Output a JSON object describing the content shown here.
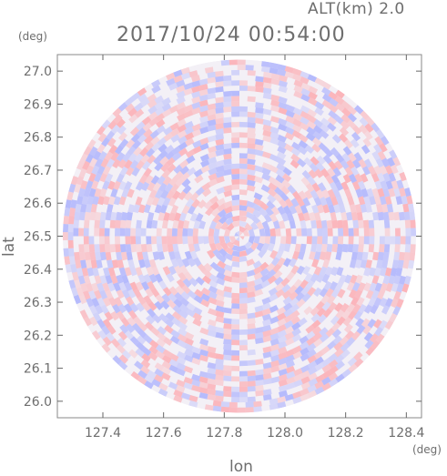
{
  "header": {
    "altitude_label": "ALT(km) 2.0",
    "timestamp": "2017/10/24 00:54:00"
  },
  "chart_data": {
    "type": "heatmap",
    "title": "2017/10/24 00:54:00",
    "subtitle": "ALT(km) 2.0",
    "xlabel": "lon",
    "ylabel": "lat",
    "x_unit": "(deg)",
    "y_unit": "(deg)",
    "xlim": [
      127.25,
      128.45
    ],
    "ylim": [
      25.95,
      27.05
    ],
    "x_ticks": [
      127.4,
      127.6,
      127.8,
      128.0,
      128.2,
      128.4
    ],
    "x_tick_labels": [
      "127.4",
      "127.6",
      "127.8",
      "128.0",
      "128.2",
      "128.4"
    ],
    "y_ticks": [
      26.0,
      26.1,
      26.2,
      26.3,
      26.4,
      26.5,
      26.6,
      26.7,
      26.8,
      26.9,
      27.0
    ],
    "y_tick_labels": [
      "26.0",
      "26.1",
      "26.2",
      "26.3",
      "26.4",
      "26.5",
      "26.6",
      "26.7",
      "26.8",
      "26.9",
      "27.0"
    ],
    "center": {
      "lon": 127.85,
      "lat": 26.5
    },
    "radius_deg_lat": 0.535,
    "colors": {
      "positive": "#ff9aa0",
      "negative": "#9aa2ff",
      "frame": "#8a8a8a"
    },
    "grid": false,
    "legend": "none"
  }
}
